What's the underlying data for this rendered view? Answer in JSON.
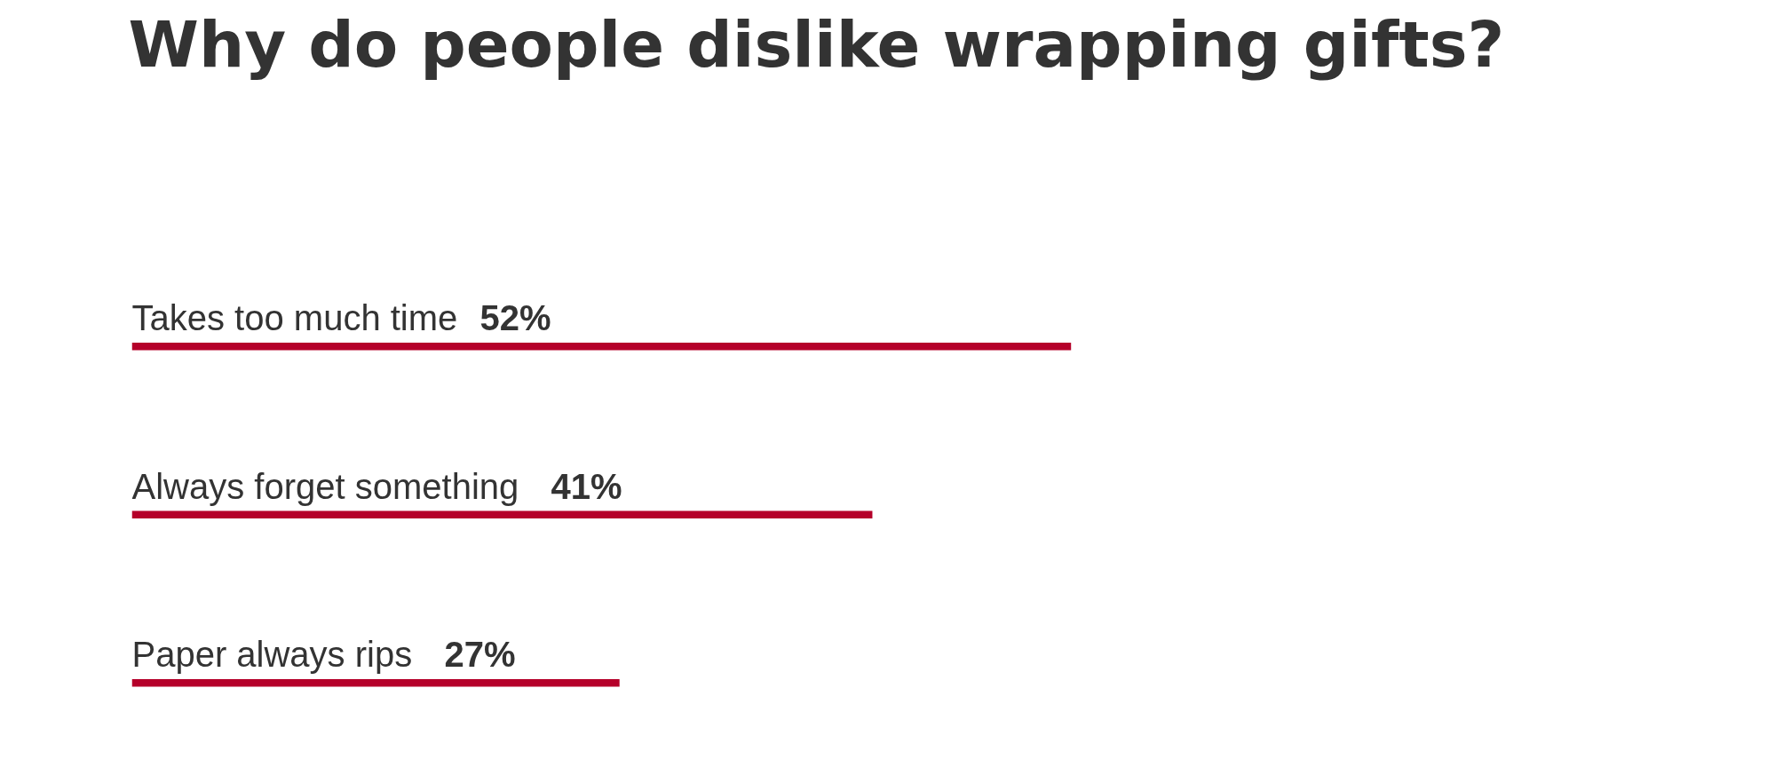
{
  "chart_data": {
    "type": "bar",
    "orientation": "horizontal",
    "title": "Why do people dislike wrapping gifts?",
    "categories": [
      "Takes too much time",
      "Always forget something",
      "Paper always rips"
    ],
    "values": [
      52,
      41,
      27
    ],
    "value_labels": [
      "52%",
      "41%",
      "27%"
    ],
    "color": "#b5002a",
    "tick_labels": false,
    "grid": false
  }
}
